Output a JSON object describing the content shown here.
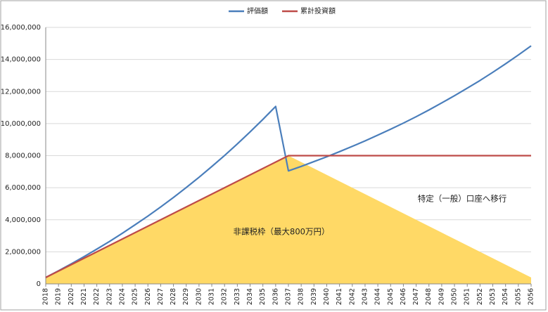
{
  "chart_data": {
    "type": "line",
    "categories": [
      "2018",
      "2019",
      "2020",
      "2021",
      "2022",
      "2023",
      "2024",
      "2025",
      "2026",
      "2027",
      "2028",
      "2029",
      "2030",
      "2031",
      "2032",
      "2033",
      "2034",
      "2035",
      "2036",
      "2037",
      "2038",
      "2039",
      "2040",
      "2041",
      "2042",
      "2043",
      "2044",
      "2045",
      "2046",
      "2047",
      "2048",
      "2049",
      "2050",
      "2051",
      "2052",
      "2053",
      "2054",
      "2055",
      "2056"
    ],
    "series": [
      {
        "name": "評価額",
        "color": "#4a7ebb",
        "values": [
          400000,
          820000,
          1250000,
          1700000,
          2170000,
          2650000,
          3160000,
          3690000,
          4230000,
          4800000,
          5390000,
          6010000,
          6650000,
          7320000,
          8010000,
          8730000,
          9480000,
          10260000,
          11070000,
          7050000,
          7330000,
          7630000,
          7930000,
          8250000,
          8580000,
          8920000,
          9280000,
          9650000,
          10030000,
          10430000,
          10850000,
          11290000,
          11740000,
          12210000,
          12690000,
          13200000,
          13730000,
          14280000,
          14850000
        ]
      },
      {
        "name": "累計投資額",
        "color": "#be4b48",
        "values": [
          400000,
          800000,
          1200000,
          1600000,
          2000000,
          2400000,
          2800000,
          3200000,
          3600000,
          4000000,
          4400000,
          4800000,
          5200000,
          5600000,
          6000000,
          6400000,
          6800000,
          7200000,
          7600000,
          8000000,
          8000000,
          8000000,
          8000000,
          8000000,
          8000000,
          8000000,
          8000000,
          8000000,
          8000000,
          8000000,
          8000000,
          8000000,
          8000000,
          8000000,
          8000000,
          8000000,
          8000000,
          8000000,
          8000000
        ]
      }
    ],
    "area": {
      "color": "#ffd966",
      "values": [
        400000,
        800000,
        1200000,
        1600000,
        2000000,
        2400000,
        2800000,
        3200000,
        3600000,
        4000000,
        4400000,
        4800000,
        5200000,
        5600000,
        6000000,
        6400000,
        6800000,
        7200000,
        7600000,
        8000000,
        7600000,
        7200000,
        6800000,
        6400000,
        6000000,
        5600000,
        5200000,
        4800000,
        4400000,
        4000000,
        3600000,
        3200000,
        2800000,
        2400000,
        2000000,
        1600000,
        1200000,
        800000,
        400000
      ]
    },
    "annotations": [
      "非課税枠（最大800万円）",
      "特定（一般）口座へ移行"
    ],
    "ylim": [
      0,
      16000000
    ],
    "yticks": [
      0,
      {
        "value": 2000000,
        "label": "2,000,000"
      },
      {
        "value": 4000000,
        "label": "4,000,000"
      },
      {
        "value": 6000000,
        "label": "6,000,000"
      },
      {
        "value": 8000000,
        "label": "8,000,000"
      },
      {
        "value": 10000000,
        "label": "10,000,000"
      },
      {
        "value": 12000000,
        "label": "12,000,000"
      },
      {
        "value": 14000000,
        "label": "14,000,000"
      },
      {
        "value": 16000000,
        "label": "16,000,000"
      }
    ],
    "grid": true,
    "legend": "top"
  }
}
